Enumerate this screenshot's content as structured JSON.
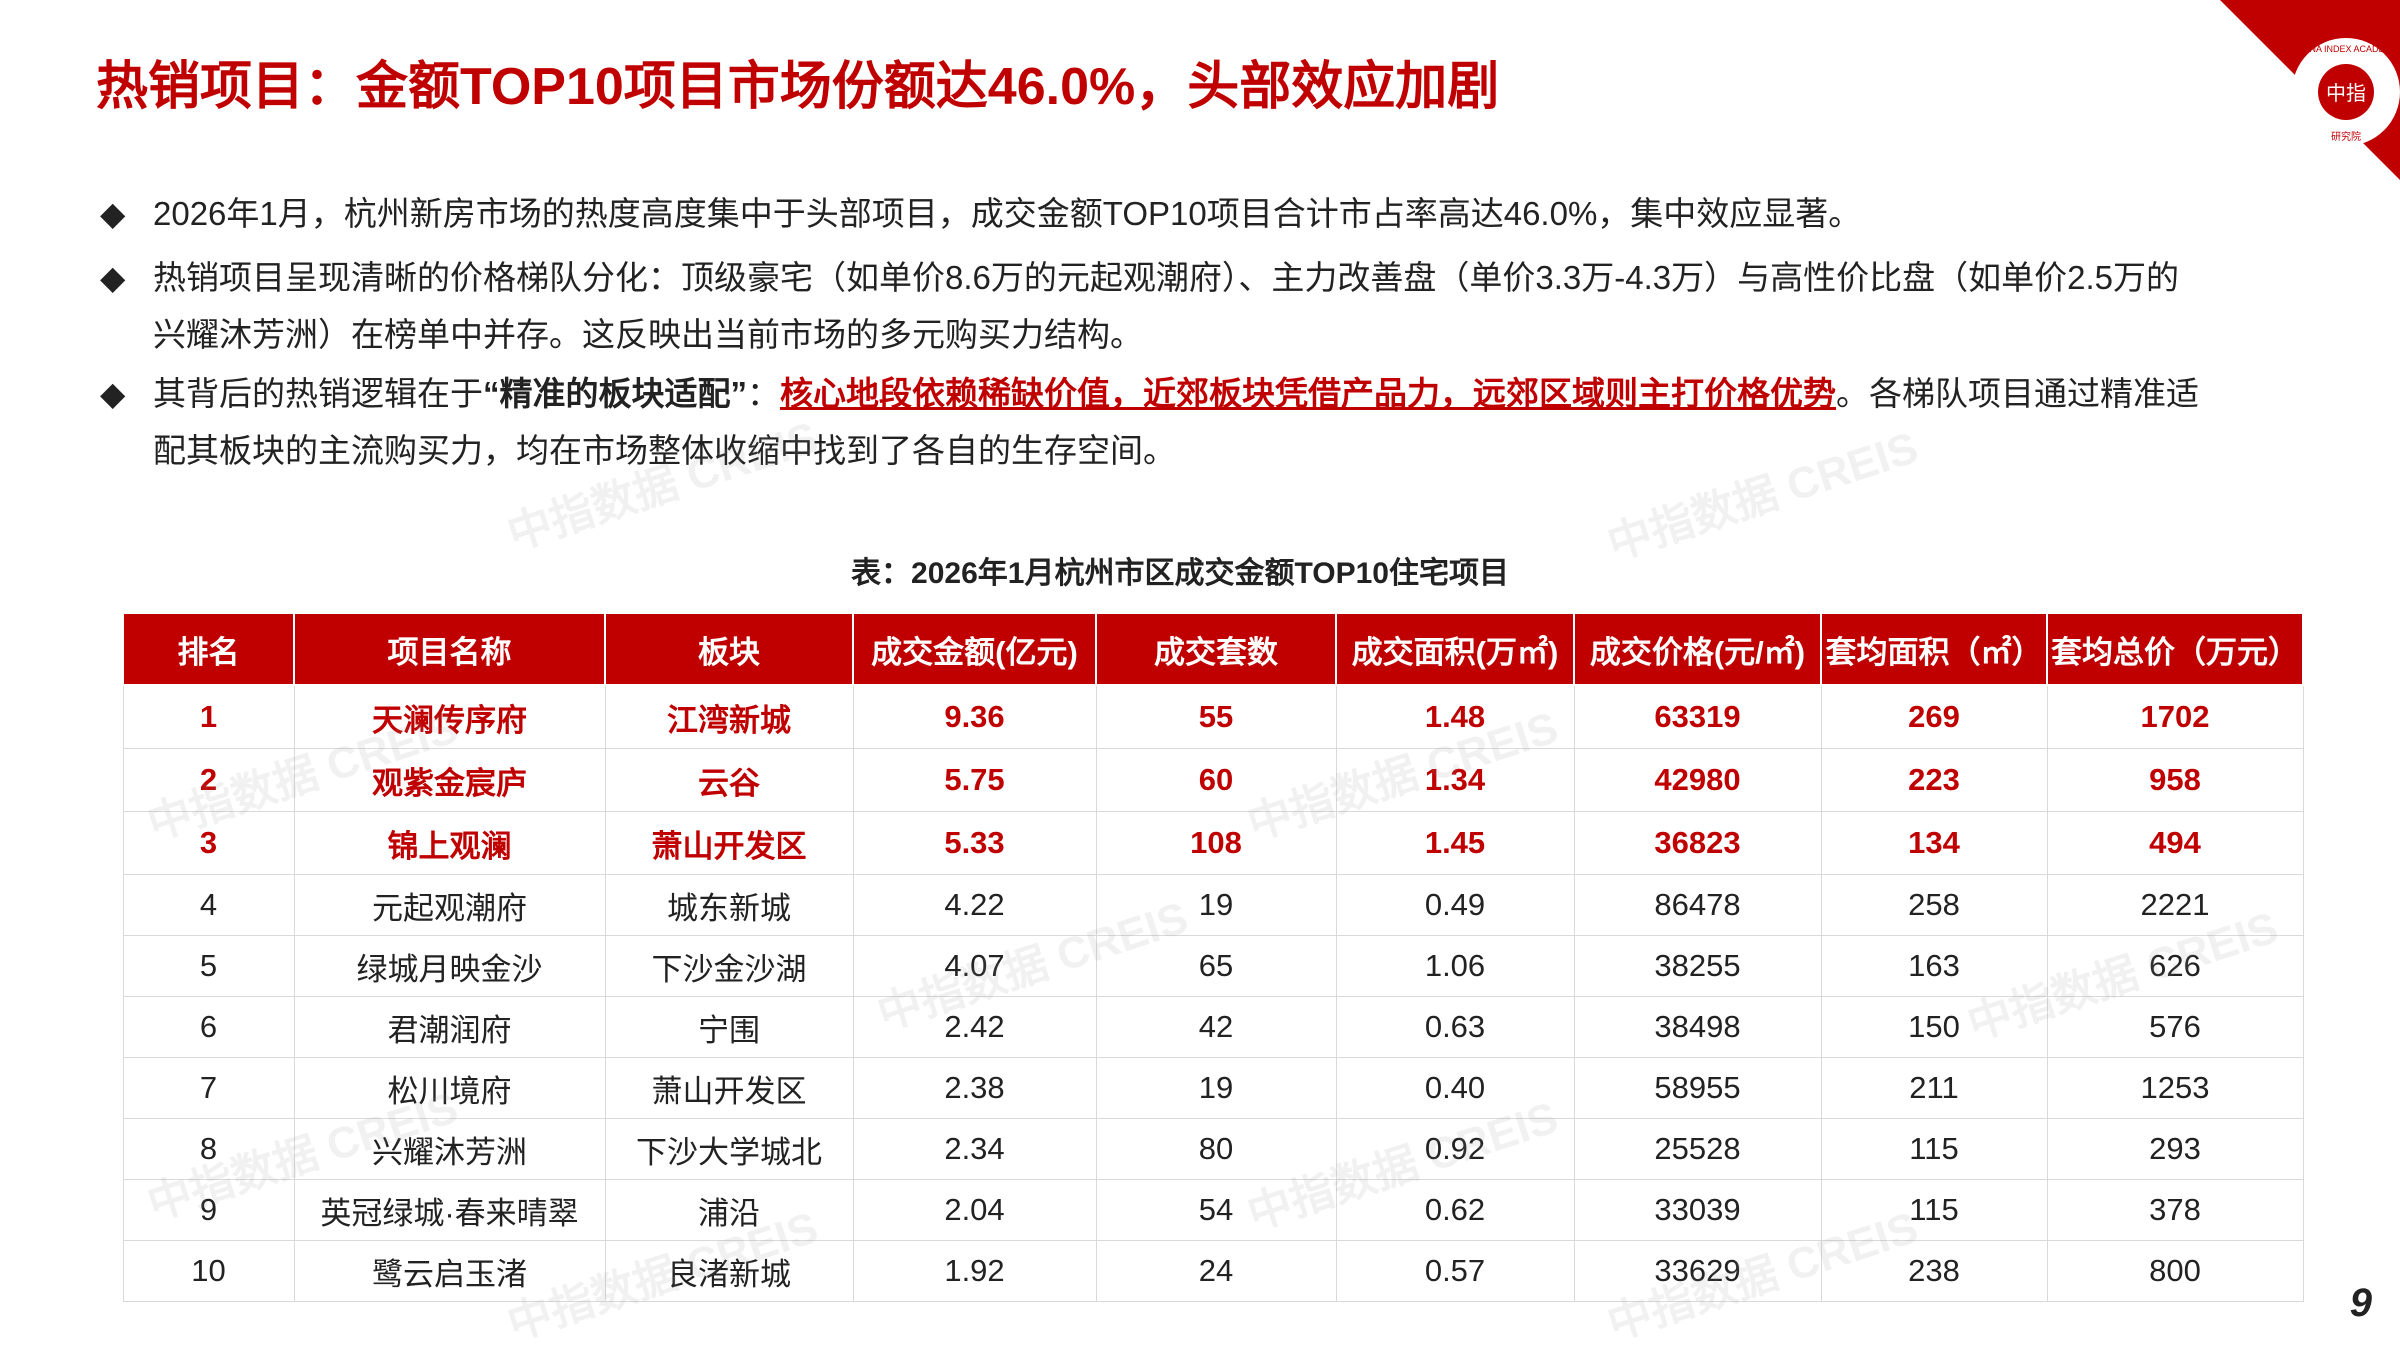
{
  "header": {
    "title": "热销项目：金额TOP10项目市场份额达46.0%，头部效应加剧"
  },
  "logo": {
    "top": "CHINA INDEX ACADEMY",
    "center": "中指",
    "bottom": "研究院"
  },
  "bullets": [
    {
      "parts": [
        "2026年1月，杭州新房市场的热度高度集中于头部项目，成交金额TOP10项目合计市占率高达46.0%，集中效应显著。"
      ]
    },
    {
      "parts": [
        "热销项目呈现清晰的价格梯队分化：顶级豪宅（如单价8.6万的元起观潮府）、主力改善盘（单价3.3万-4.3万）与高性价比盘（如单价2.5万的兴耀沐芳洲）在榜单中并存。这反映出当前市场的多元购买力结构。"
      ]
    },
    {
      "parts": [
        "其背后的热销逻辑在于",
        "“精准的板块适配”",
        "：",
        "核心地段依赖稀缺价值，近郊板块凭借产品力，远郊区域则主打价格优势",
        "。各梯队项目通过精准适配其板块的主流购买力，均在市场整体收缩中找到了各自的生存空间。"
      ]
    }
  ],
  "table": {
    "caption": "表：2026年1月杭州市区成交金额TOP10住宅项目",
    "columns": [
      "排名",
      "项目名称",
      "板块",
      "成交金额(亿元)",
      "成交套数",
      "成交面积(万㎡)",
      "成交价格(元/㎡)",
      "套均面积（㎡）",
      "套均总价（万元）"
    ],
    "rows": [
      [
        "1",
        "天澜传序府",
        "江湾新城",
        "9.36",
        "55",
        "1.48",
        "63319",
        "269",
        "1702"
      ],
      [
        "2",
        "观紫金宸庐",
        "云谷",
        "5.75",
        "60",
        "1.34",
        "42980",
        "223",
        "958"
      ],
      [
        "3",
        "锦上观澜",
        "萧山开发区",
        "5.33",
        "108",
        "1.45",
        "36823",
        "134",
        "494"
      ],
      [
        "4",
        "元起观潮府",
        "城东新城",
        "4.22",
        "19",
        "0.49",
        "86478",
        "258",
        "2221"
      ],
      [
        "5",
        "绿城月映金沙",
        "下沙金沙湖",
        "4.07",
        "65",
        "1.06",
        "38255",
        "163",
        "626"
      ],
      [
        "6",
        "君潮润府",
        "宁围",
        "2.42",
        "42",
        "0.63",
        "38498",
        "150",
        "576"
      ],
      [
        "7",
        "松川境府",
        "萧山开发区",
        "2.38",
        "19",
        "0.40",
        "58955",
        "211",
        "1253"
      ],
      [
        "8",
        "兴耀沐芳洲",
        "下沙大学城北",
        "2.34",
        "80",
        "0.92",
        "25528",
        "115",
        "293"
      ],
      [
        "9",
        "英冠绿城·春来晴翠",
        "浦沿",
        "2.04",
        "54",
        "0.62",
        "33039",
        "115",
        "378"
      ],
      [
        "10",
        "鹭云启玉渚",
        "良渚新城",
        "1.92",
        "24",
        "0.57",
        "33629",
        "238",
        "800"
      ]
    ]
  },
  "watermark": "中指数据 CREIS",
  "page_number": "9"
}
